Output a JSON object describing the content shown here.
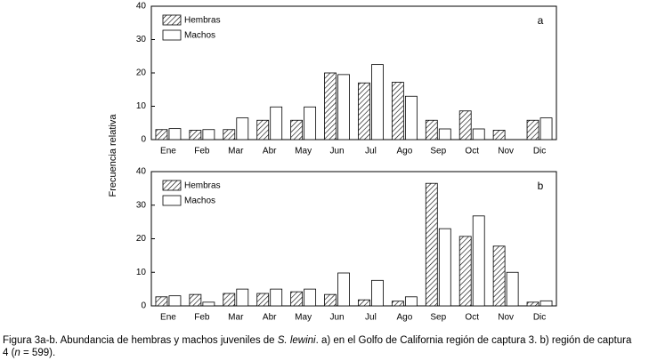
{
  "chart_data": [
    {
      "type": "bar",
      "panel_label": "a",
      "ylabel": "Frecuencia relativa",
      "categories": [
        "Ene",
        "Feb",
        "Mar",
        "Abr",
        "May",
        "Jun",
        "Jul",
        "Ago",
        "Sep",
        "Oct",
        "Nov",
        "Dic"
      ],
      "series": [
        {
          "name": "Hembras",
          "fill": "hatch",
          "values": [
            3,
            2.8,
            3,
            5.8,
            5.8,
            20,
            17,
            17.2,
            5.8,
            8.6,
            2.8,
            5.8
          ]
        },
        {
          "name": "Machos",
          "fill": "white",
          "values": [
            3.3,
            3,
            6.5,
            9.8,
            9.8,
            19.5,
            22.5,
            13,
            3.2,
            3.2,
            0,
            6.5
          ]
        }
      ],
      "ylim": [
        0,
        40
      ],
      "yticks": [
        0,
        10,
        20,
        30,
        40
      ],
      "legend": "upper left"
    },
    {
      "type": "bar",
      "panel_label": "b",
      "categories": [
        "Ene",
        "Feb",
        "Mar",
        "Abr",
        "May",
        "Jun",
        "Jul",
        "Ago",
        "Sep",
        "Oct",
        "Nov",
        "Dic"
      ],
      "series": [
        {
          "name": "Hembras",
          "fill": "hatch",
          "values": [
            2.7,
            3.4,
            3.7,
            3.7,
            4.2,
            3.4,
            1.8,
            1.4,
            36.5,
            20.7,
            17.8,
            1.1
          ]
        },
        {
          "name": "Machos",
          "fill": "white",
          "values": [
            3,
            1.1,
            5,
            5,
            5,
            9.8,
            7.6,
            2.7,
            23,
            26.8,
            10,
            1.5
          ]
        }
      ],
      "ylim": [
        0,
        40
      ],
      "yticks": [
        0,
        10,
        20,
        30,
        40
      ],
      "legend": "upper left"
    }
  ],
  "caption": [
    "Figura 3a-b. Abundancia de hembras y machos juveniles de ",
    "S. lewini",
    ". a) en el Golfo de California región de captura 3. b) región de captura 4 (",
    "n",
    " = 599)."
  ]
}
